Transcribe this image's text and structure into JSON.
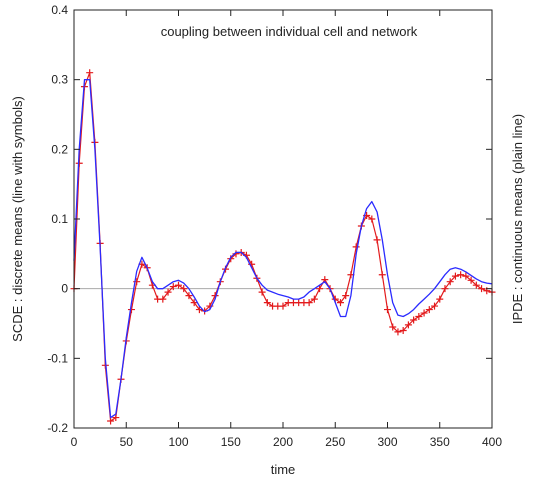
{
  "chart_data": {
    "type": "line",
    "title": "",
    "annotation": "coupling between individual cell and network",
    "xlabel": "time",
    "ylabel_left": "SCDE :  discrete means (line with symbols)",
    "ylabel_right": "IPDE :  continuous means (plain line)",
    "xlim": [
      0,
      400
    ],
    "ylim": [
      -0.2,
      0.4
    ],
    "x_ticks": [
      "0",
      "50",
      "100",
      "150",
      "200",
      "250",
      "300",
      "350",
      "400"
    ],
    "y_ticks": [
      "-0.2",
      "-0.1",
      "0",
      "0.1",
      "0.2",
      "0.3",
      "0.4"
    ],
    "x_tick_values": [
      0,
      50,
      100,
      150,
      200,
      250,
      300,
      350,
      400
    ],
    "y_tick_values": [
      -0.2,
      -0.1,
      0,
      0.1,
      0.2,
      0.3,
      0.4
    ],
    "zero_line": true,
    "grid": false,
    "legend": "none",
    "series": [
      {
        "style": "line-with-plus-symbols",
        "color": "#e31a1c",
        "x": [
          0,
          5,
          10,
          15,
          20,
          25,
          30,
          35,
          40,
          45,
          50,
          55,
          60,
          65,
          70,
          75,
          80,
          85,
          90,
          95,
          100,
          105,
          110,
          115,
          120,
          125,
          130,
          135,
          140,
          145,
          150,
          155,
          160,
          165,
          170,
          175,
          180,
          185,
          190,
          195,
          200,
          205,
          210,
          215,
          220,
          225,
          230,
          235,
          240,
          245,
          250,
          255,
          260,
          265,
          270,
          275,
          280,
          285,
          290,
          295,
          300,
          305,
          310,
          315,
          320,
          325,
          330,
          335,
          340,
          345,
          350,
          355,
          360,
          365,
          370,
          375,
          380,
          385,
          390,
          395,
          400
        ],
        "y": [
          0.0,
          0.18,
          0.29,
          0.31,
          0.21,
          0.065,
          -0.11,
          -0.19,
          -0.185,
          -0.13,
          -0.075,
          -0.03,
          0.01,
          0.035,
          0.03,
          0.005,
          -0.015,
          -0.015,
          -0.005,
          0.003,
          0.005,
          0.0,
          -0.01,
          -0.02,
          -0.03,
          -0.032,
          -0.025,
          -0.01,
          0.01,
          0.028,
          0.043,
          0.05,
          0.052,
          0.048,
          0.035,
          0.015,
          -0.005,
          -0.02,
          -0.025,
          -0.025,
          -0.025,
          -0.02,
          -0.02,
          -0.02,
          -0.02,
          -0.02,
          -0.015,
          0.0,
          0.013,
          0.0,
          -0.015,
          -0.02,
          -0.01,
          0.02,
          0.06,
          0.09,
          0.105,
          0.1,
          0.07,
          0.02,
          -0.03,
          -0.055,
          -0.062,
          -0.06,
          -0.052,
          -0.045,
          -0.04,
          -0.035,
          -0.03,
          -0.025,
          -0.015,
          0.0,
          0.01,
          0.018,
          0.02,
          0.018,
          0.012,
          0.005,
          0.0,
          -0.003,
          -0.005
        ]
      },
      {
        "style": "plain-line",
        "color": "#2b2bff",
        "x": [
          0,
          5,
          10,
          15,
          20,
          25,
          30,
          35,
          40,
          45,
          50,
          55,
          60,
          65,
          70,
          75,
          80,
          85,
          90,
          95,
          100,
          105,
          110,
          115,
          120,
          125,
          130,
          135,
          140,
          145,
          150,
          155,
          160,
          165,
          170,
          175,
          180,
          185,
          190,
          195,
          200,
          205,
          210,
          215,
          220,
          225,
          230,
          235,
          240,
          245,
          250,
          255,
          260,
          265,
          270,
          275,
          280,
          285,
          290,
          295,
          300,
          305,
          310,
          315,
          320,
          325,
          330,
          335,
          340,
          345,
          350,
          355,
          360,
          365,
          370,
          375,
          380,
          385,
          390,
          395,
          400
        ],
        "y": [
          0.04,
          0.2,
          0.3,
          0.3,
          0.2,
          0.06,
          -0.1,
          -0.185,
          -0.18,
          -0.13,
          -0.07,
          -0.02,
          0.025,
          0.045,
          0.03,
          0.01,
          0.0,
          0.0,
          0.005,
          0.01,
          0.012,
          0.008,
          0.0,
          -0.012,
          -0.025,
          -0.033,
          -0.03,
          -0.015,
          0.01,
          0.03,
          0.045,
          0.052,
          0.052,
          0.045,
          0.03,
          0.015,
          0.005,
          -0.002,
          -0.005,
          -0.008,
          -0.01,
          -0.012,
          -0.015,
          -0.015,
          -0.012,
          -0.005,
          0.0,
          0.005,
          0.01,
          0.0,
          -0.02,
          -0.04,
          -0.04,
          -0.01,
          0.05,
          0.09,
          0.115,
          0.125,
          0.11,
          0.07,
          0.02,
          -0.02,
          -0.038,
          -0.04,
          -0.036,
          -0.03,
          -0.022,
          -0.015,
          -0.008,
          0.0,
          0.01,
          0.02,
          0.028,
          0.03,
          0.028,
          0.024,
          0.019,
          0.014,
          0.01,
          0.008,
          0.007
        ]
      }
    ]
  }
}
